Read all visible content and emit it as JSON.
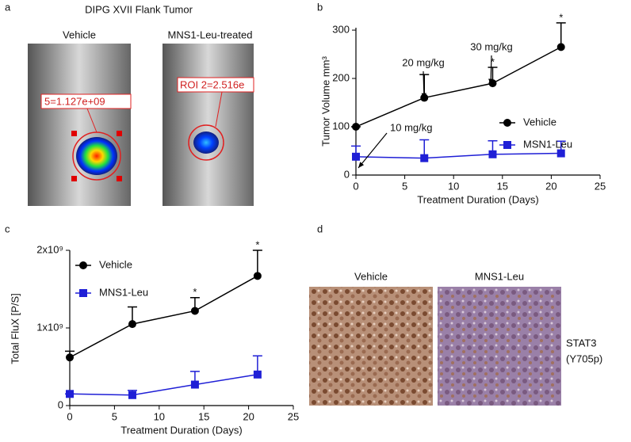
{
  "panel_labels": [
    "a",
    "b",
    "c",
    "d"
  ],
  "panel_a": {
    "title": "DIPG XVII Flank Tumor",
    "images": [
      "Vehicle",
      "MNS1-Leu-treated"
    ],
    "roi_labels": [
      "5=1.127e+09",
      "ROI 2=2.516e"
    ]
  },
  "panel_d": {
    "columns": [
      "Vehicle",
      "MNS1-Leu"
    ],
    "stain_label": [
      "STAT3",
      "(Y705p)"
    ]
  },
  "chart_data": [
    {
      "type": "line",
      "xlabel": "Treatment Duration (Days)",
      "ylabel": "Tumor Volume mm³",
      "x": [
        0,
        7,
        14,
        21
      ],
      "xlim": [
        0,
        25
      ],
      "xticks": [
        0,
        5,
        10,
        15,
        20,
        25
      ],
      "ylim": [
        0,
        305
      ],
      "yticks": [
        0,
        100,
        200,
        300
      ],
      "legend": "right",
      "series": [
        {
          "name": "Vehicle",
          "color": "#000000",
          "marker": "circle",
          "values": [
            100,
            160,
            190,
            265
          ],
          "errors": [
            0,
            48,
            33,
            50
          ]
        },
        {
          "name": "MSN1-Leu",
          "color": "#1f1fd6",
          "marker": "square",
          "values": [
            38,
            35,
            43,
            45
          ],
          "errors": [
            22,
            38,
            28,
            25
          ]
        }
      ],
      "annotations": [
        {
          "text": "10 mg/kg",
          "x": 0
        },
        {
          "text": "20 mg/kg",
          "x": 7
        },
        {
          "text": "30 mg/kg",
          "x": 14
        }
      ],
      "significance": [
        {
          "x": 14,
          "label": "*"
        },
        {
          "x": 21,
          "label": "*"
        }
      ]
    },
    {
      "type": "line",
      "xlabel": "Treatment Duration (Days)",
      "ylabel": "Total FluX [P/S]",
      "x": [
        0,
        7,
        14,
        21
      ],
      "xlim": [
        0,
        25
      ],
      "xticks": [
        0,
        5,
        10,
        15,
        20,
        25
      ],
      "ylim": [
        0,
        2000000000
      ],
      "yticks": [
        0,
        {
          "value": 1000000000,
          "label": "1x10⁹"
        },
        {
          "value": 2000000000,
          "label": "2x10⁹"
        }
      ],
      "legend": "upper left",
      "series": [
        {
          "name": "Vehicle",
          "color": "#000000",
          "marker": "circle",
          "values": [
            620000000,
            1050000000,
            1220000000,
            1670000000
          ],
          "errors": [
            80000000,
            220000000,
            170000000,
            330000000
          ]
        },
        {
          "name": "MNS1-Leu",
          "color": "#1f1fd6",
          "marker": "square",
          "values": [
            150000000,
            135000000,
            270000000,
            400000000
          ],
          "errors": [
            0,
            60000000,
            170000000,
            240000000
          ]
        }
      ],
      "significance": [
        {
          "x": 14,
          "label": "*"
        },
        {
          "x": 21,
          "label": "*"
        }
      ]
    }
  ]
}
